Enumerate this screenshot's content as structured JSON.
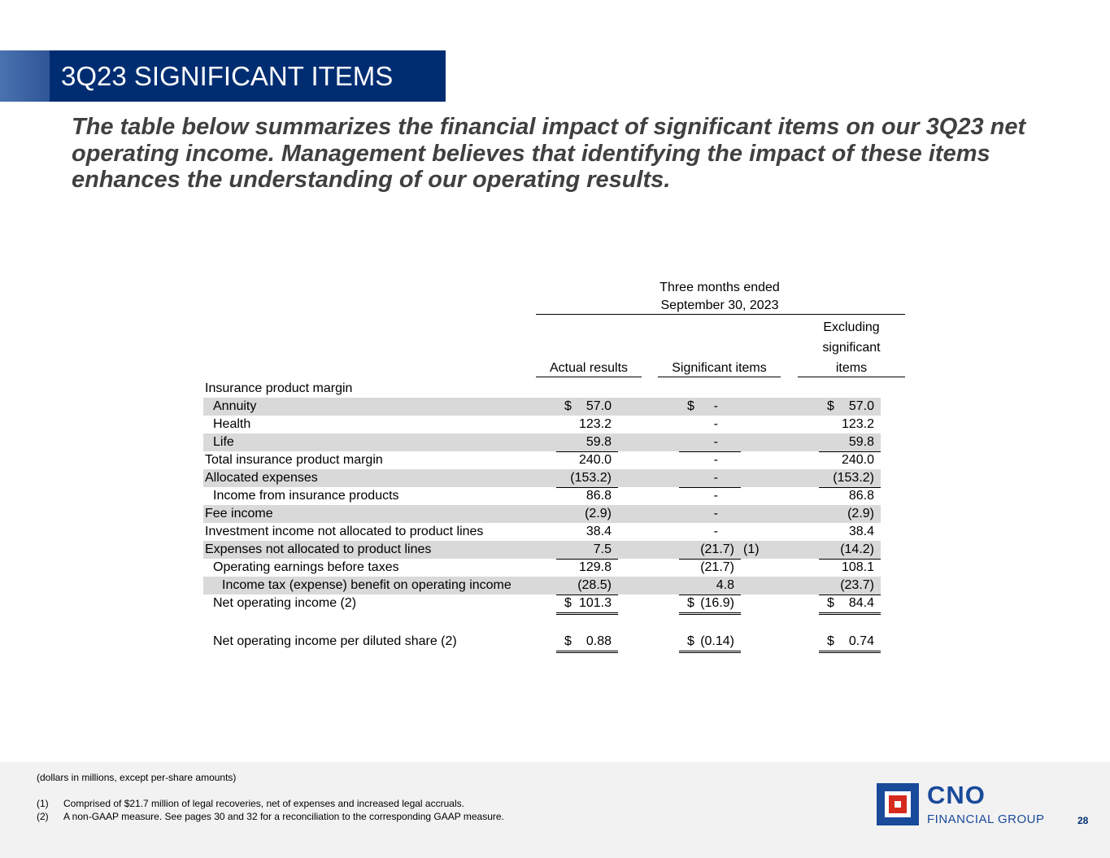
{
  "title": "3Q23 SIGNIFICANT ITEMS",
  "headline": "The table below summarizes the financial impact of significant items on our 3Q23 net operating income. Management believes that identifying the impact of these items enhances the understanding of our operating results.",
  "table": {
    "period_line1": "Three months ended",
    "period_line2": "September 30, 2023",
    "col_actual": "Actual results",
    "col_significant": "Significant items",
    "col_excl_1": "Excluding",
    "col_excl_2": "significant",
    "col_excl_3": "items",
    "section_label": "Insurance product margin",
    "rows": [
      {
        "label": "Annuity",
        "actual": "57.0",
        "actual_dollar": "$",
        "sig": "-",
        "sig_dollar": "$",
        "excl": "57.0",
        "excl_dollar": "$"
      },
      {
        "label": "Health",
        "actual": "123.2",
        "sig": "-",
        "excl": "123.2"
      },
      {
        "label": "Life",
        "actual": "59.8",
        "sig": "-",
        "excl": "59.8"
      },
      {
        "label": "Total insurance product margin",
        "actual": "240.0",
        "sig": "-",
        "excl": "240.0"
      },
      {
        "label": "Allocated expenses",
        "actual": "(153.2)",
        "sig": "-",
        "excl": "(153.2)"
      },
      {
        "label": "Income from insurance products",
        "actual": "86.8",
        "sig": "-",
        "excl": "86.8"
      },
      {
        "label": "Fee income",
        "actual": "(2.9)",
        "sig": "-",
        "excl": "(2.9)"
      },
      {
        "label": "Investment income not allocated to product lines",
        "actual": "38.4",
        "sig": "-",
        "excl": "38.4"
      },
      {
        "label": "Expenses not allocated to product lines",
        "actual": "7.5",
        "sig": "(21.7)",
        "sig_note": "(1)",
        "excl": "(14.2)"
      },
      {
        "label": "Operating earnings before taxes",
        "actual": "129.8",
        "sig": "(21.7)",
        "excl": "108.1"
      },
      {
        "label": "Income tax (expense) benefit on operating income",
        "actual": "(28.5)",
        "sig": "4.8",
        "excl": "(23.7)"
      },
      {
        "label": "Net operating income (2)",
        "actual": "101.3",
        "actual_dollar": "$",
        "sig": "(16.9)",
        "sig_dollar": "$",
        "excl": "84.4",
        "excl_dollar": "$"
      },
      {
        "label": "Net operating income per diluted share (2)",
        "actual": "0.88",
        "actual_dollar": "$",
        "sig": "(0.14)",
        "sig_dollar": "$",
        "excl": "0.74",
        "excl_dollar": "$"
      }
    ]
  },
  "footer": {
    "units_note": "(dollars in millions, except per-share amounts)",
    "note1_num": "(1)",
    "note1_text": "Comprised of $21.7 million of legal recoveries, net of expenses and increased legal accruals.",
    "note2_num": "(2)",
    "note2_text": "A non-GAAP measure. See pages 30 and 32 for a reconciliation to the corresponding GAAP measure.",
    "logo_name": "CNO",
    "logo_sub": "FINANCIAL GROUP",
    "page_number": "28"
  },
  "colors": {
    "navy": "#002d72",
    "row_shade": "#d9d9d9",
    "logo_blue": "#1a4a9a",
    "logo_red": "#d62a1e"
  }
}
